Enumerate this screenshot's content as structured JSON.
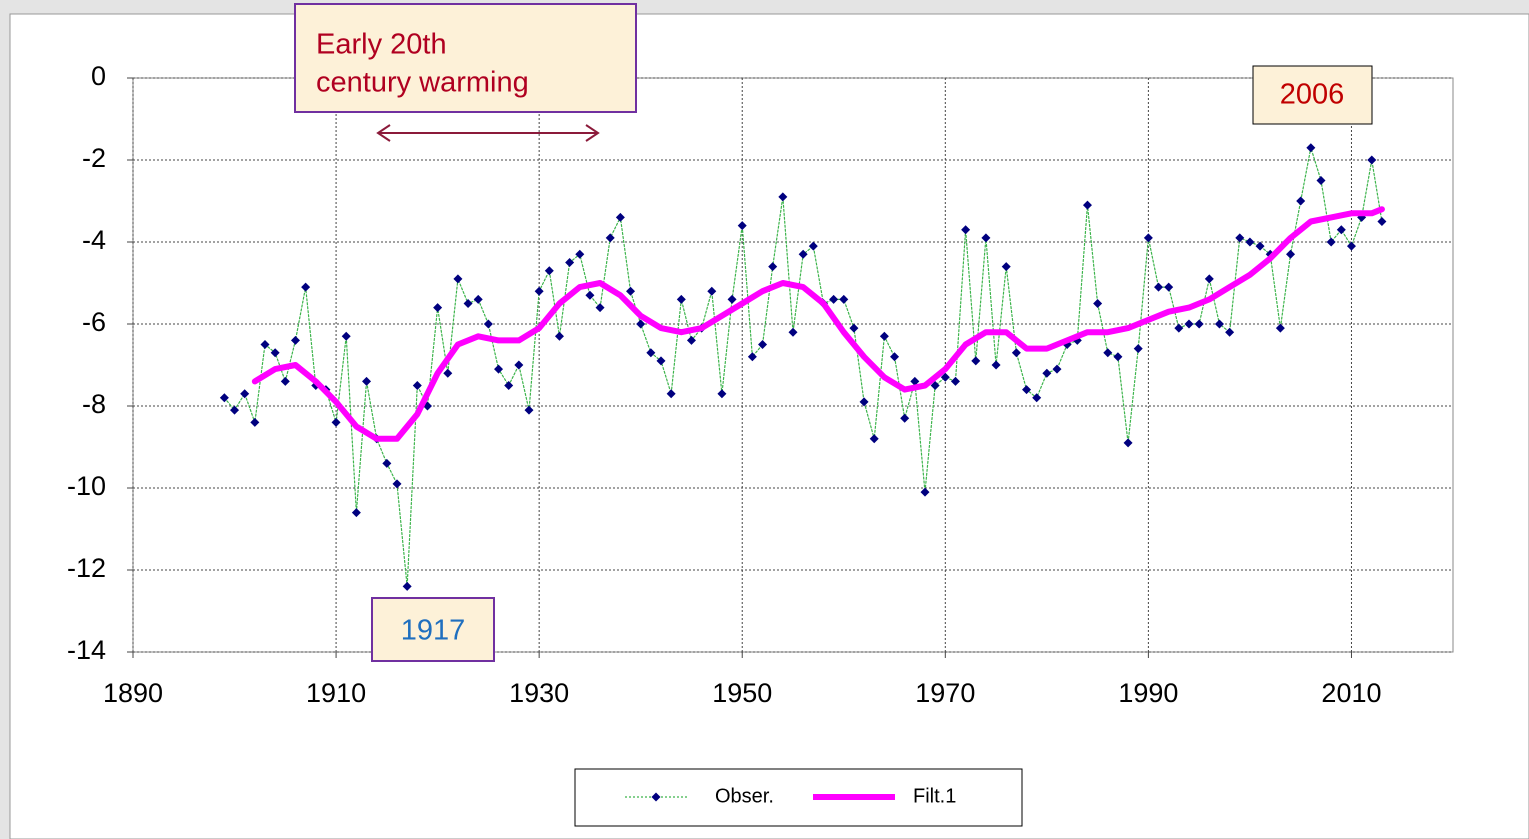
{
  "chart_data": {
    "type": "line",
    "xlim": [
      1890,
      2020
    ],
    "xticks": [
      1890,
      1910,
      1930,
      1950,
      1970,
      1990,
      2010
    ],
    "ylim": [
      -14,
      0
    ],
    "yticks": [
      0,
      -2,
      -4,
      -6,
      -8,
      -10,
      -12,
      -14
    ],
    "grid": true,
    "legend": "bottom",
    "annotations": [
      {
        "text": [
          "Early 20th",
          "century warming"
        ]
      },
      {
        "text": "2006"
      },
      {
        "text": "1917"
      }
    ],
    "series": [
      {
        "name": "Obser.",
        "color": "#00007f",
        "line_color": "#3cb44b",
        "x": [
          1899,
          1900,
          1901,
          1902,
          1903,
          1904,
          1905,
          1906,
          1907,
          1908,
          1909,
          1910,
          1911,
          1912,
          1913,
          1914,
          1915,
          1916,
          1917,
          1918,
          1919,
          1920,
          1921,
          1922,
          1923,
          1924,
          1925,
          1926,
          1927,
          1928,
          1929,
          1930,
          1931,
          1932,
          1933,
          1934,
          1935,
          1936,
          1937,
          1938,
          1939,
          1940,
          1941,
          1942,
          1943,
          1944,
          1945,
          1946,
          1947,
          1948,
          1949,
          1950,
          1951,
          1952,
          1953,
          1954,
          1955,
          1956,
          1957,
          1958,
          1959,
          1960,
          1961,
          1962,
          1963,
          1964,
          1965,
          1966,
          1967,
          1968,
          1969,
          1970,
          1971,
          1972,
          1973,
          1974,
          1975,
          1976,
          1977,
          1978,
          1979,
          1980,
          1981,
          1982,
          1983,
          1984,
          1985,
          1986,
          1987,
          1988,
          1989,
          1990,
          1991,
          1992,
          1993,
          1994,
          1995,
          1996,
          1997,
          1998,
          1999,
          2000,
          2001,
          2002,
          2003,
          2004,
          2005,
          2006,
          2007,
          2008,
          2009,
          2010,
          2011,
          2012,
          2013
        ],
        "values": [
          -7.8,
          -8.1,
          -7.7,
          -8.4,
          -6.5,
          -6.7,
          -7.4,
          -6.4,
          -5.1,
          -7.5,
          -7.6,
          -8.4,
          -6.3,
          -10.6,
          -7.4,
          -8.8,
          -9.4,
          -9.9,
          -12.4,
          -7.5,
          -8.0,
          -5.6,
          -7.2,
          -4.9,
          -5.5,
          -5.4,
          -6.0,
          -7.1,
          -7.5,
          -7.0,
          -8.1,
          -5.2,
          -4.7,
          -6.3,
          -4.5,
          -4.3,
          -5.3,
          -5.6,
          -3.9,
          -3.4,
          -5.2,
          -6.0,
          -6.7,
          -6.9,
          -7.7,
          -5.4,
          -6.4,
          -6.1,
          -5.2,
          -7.7,
          -5.4,
          -3.6,
          -6.8,
          -6.5,
          -4.6,
          -2.9,
          -6.2,
          -4.3,
          -4.1,
          -5.5,
          -5.4,
          -5.4,
          -6.1,
          -7.9,
          -8.8,
          -6.3,
          -6.8,
          -8.3,
          -7.4,
          -10.1,
          -7.5,
          -7.3,
          -7.4,
          -3.7,
          -6.9,
          -3.9,
          -7.0,
          -4.6,
          -6.7,
          -7.6,
          -7.8,
          -7.2,
          -7.1,
          -6.5,
          -6.4,
          -3.1,
          -5.5,
          -6.7,
          -6.8,
          -8.9,
          -6.6,
          -3.9,
          -5.1,
          -5.1,
          -6.1,
          -6.0,
          -6.0,
          -4.9,
          -6.0,
          -6.2,
          -3.9,
          -4.0,
          -4.1,
          -4.3,
          -6.1,
          -4.3,
          -3.0,
          -1.7,
          -2.5,
          -4.0,
          -3.7,
          -4.1,
          -3.4,
          -2.0,
          -3.5
        ]
      },
      {
        "name": "Filt.1",
        "color": "#ff00ff",
        "x": [
          1902,
          1904,
          1906,
          1908,
          1910,
          1912,
          1914,
          1916,
          1918,
          1920,
          1922,
          1924,
          1926,
          1928,
          1930,
          1932,
          1934,
          1936,
          1938,
          1940,
          1942,
          1944,
          1946,
          1948,
          1950,
          1952,
          1954,
          1956,
          1958,
          1960,
          1962,
          1964,
          1966,
          1968,
          1970,
          1972,
          1974,
          1976,
          1978,
          1980,
          1982,
          1984,
          1986,
          1988,
          1990,
          1992,
          1994,
          1996,
          1998,
          2000,
          2002,
          2004,
          2006,
          2008,
          2010,
          2012,
          2013
        ],
        "values": [
          -7.4,
          -7.1,
          -7.0,
          -7.4,
          -7.9,
          -8.5,
          -8.8,
          -8.8,
          -8.2,
          -7.2,
          -6.5,
          -6.3,
          -6.4,
          -6.4,
          -6.1,
          -5.5,
          -5.1,
          -5.0,
          -5.3,
          -5.8,
          -6.1,
          -6.2,
          -6.1,
          -5.8,
          -5.5,
          -5.2,
          -5.0,
          -5.1,
          -5.5,
          -6.2,
          -6.8,
          -7.3,
          -7.6,
          -7.5,
          -7.1,
          -6.5,
          -6.2,
          -6.2,
          -6.6,
          -6.6,
          -6.4,
          -6.2,
          -6.2,
          -6.1,
          -5.9,
          -5.7,
          -5.6,
          -5.4,
          -5.1,
          -4.8,
          -4.4,
          -3.9,
          -3.5,
          -3.4,
          -3.3,
          -3.3,
          -3.2
        ]
      }
    ]
  }
}
